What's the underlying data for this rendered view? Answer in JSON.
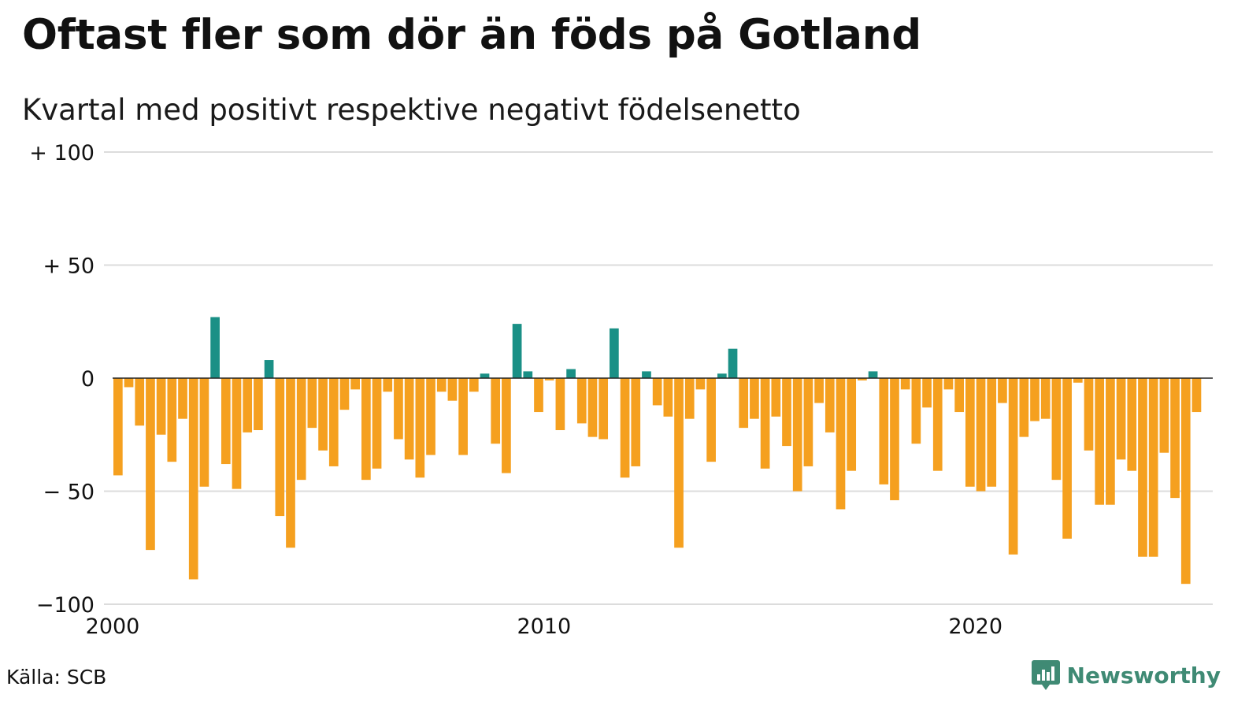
{
  "header": {
    "title": "Oftast fler som dör än föds på Gotland",
    "subtitle": "Kvartal med positivt respektive negativt födelsenetto"
  },
  "footer": {
    "source": "Källa: SCB",
    "brand": "Newsworthy"
  },
  "colors": {
    "positive": "#1a9086",
    "negative": "#f5a01f",
    "grid": "#dcdcdc",
    "baseline": "#222222",
    "brand": "#3f8a74"
  },
  "chart_data": {
    "type": "bar",
    "title": "Oftast fler som dör än föds på Gotland",
    "subtitle": "Kvartal med positivt respektive negativt födelsenetto",
    "ylim": [
      -100,
      100
    ],
    "yticks": [
      {
        "value": 100,
        "label": "+ 100"
      },
      {
        "value": 50,
        "label": "+  50"
      },
      {
        "value": 0,
        "label": "0"
      },
      {
        "value": -50,
        "label": "− 50"
      },
      {
        "value": -100,
        "label": "−100"
      }
    ],
    "xticks": [
      {
        "value": 2000,
        "label": "2000"
      },
      {
        "value": 2010,
        "label": "2010"
      },
      {
        "value": 2020,
        "label": "2020"
      }
    ],
    "x_start": 2000,
    "x_end": 2025.5,
    "grid": true,
    "legend": "none",
    "quarter_values": [
      -43,
      -4,
      -21,
      -76,
      -25,
      -37,
      -18,
      -89,
      -48,
      27,
      -38,
      -49,
      -24,
      -23,
      8,
      -61,
      -75,
      -45,
      -22,
      -32,
      -39,
      -14,
      -5,
      -45,
      -40,
      -6,
      -27,
      -36,
      -44,
      -34,
      -6,
      -10,
      -34,
      -6,
      2,
      -29,
      -42,
      24,
      3,
      -15,
      -1,
      -23,
      4,
      -20,
      -26,
      -27,
      22,
      -44,
      -39,
      3,
      -12,
      -17,
      -75,
      -18,
      -5,
      -37,
      2,
      13,
      -22,
      -18,
      -40,
      -17,
      -30,
      -50,
      -39,
      -11,
      -24,
      -58,
      -41,
      -1,
      3,
      -47,
      -54,
      -5,
      -29,
      -13,
      -41,
      -5,
      -15,
      -48,
      -50,
      -48,
      -11,
      -78,
      -26,
      -19,
      -18,
      -45,
      -71,
      -2,
      -32,
      -56,
      -56,
      -36,
      -41,
      -79,
      -79,
      -33,
      -53,
      -91,
      -15
    ]
  }
}
